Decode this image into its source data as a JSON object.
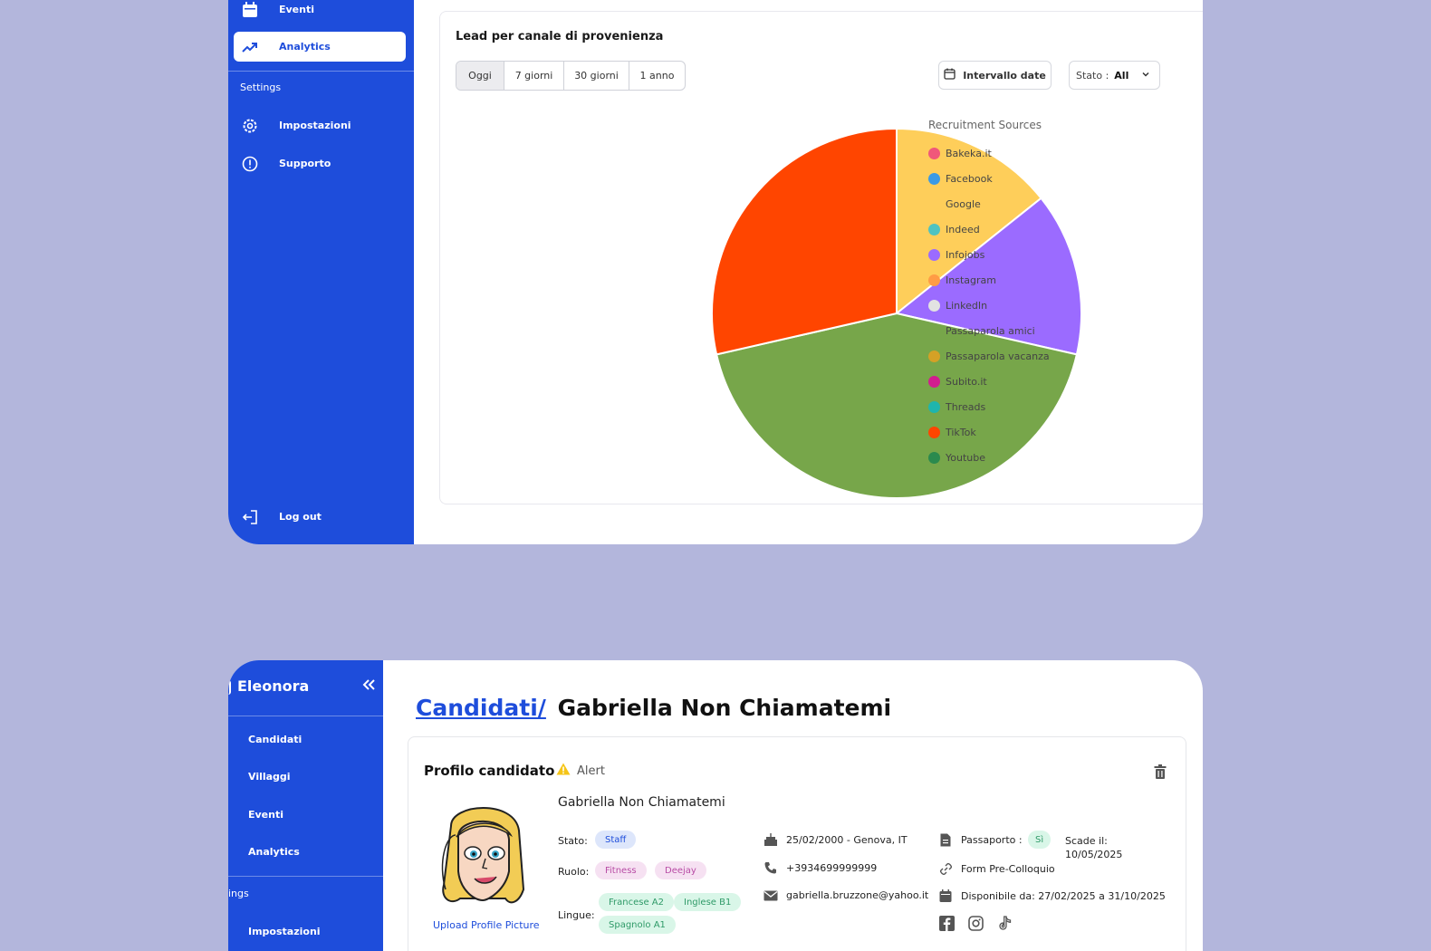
{
  "top_window": {
    "sidebar": {
      "items": [
        {
          "label": "Eventi",
          "icon": "calendar-icon"
        },
        {
          "label": "Analytics",
          "icon": "trending-up-icon",
          "active": true
        }
      ],
      "section_settings": "Settings",
      "settings_items": [
        {
          "label": "Impostazioni",
          "icon": "gear-icon"
        },
        {
          "label": "Supporto",
          "icon": "alert-circle-icon"
        }
      ],
      "logout": "Log out"
    },
    "card": {
      "title": "Lead per canale di provenienza",
      "range_tabs": [
        "Oggi",
        "7 giorni",
        "30 giorni",
        "1 anno"
      ],
      "selected_range": "Oggi",
      "date_button": "Intervallo date",
      "status_label": "Stato :",
      "status_value": "All"
    }
  },
  "chart_data": {
    "type": "pie",
    "legend_title": "Recruitment Sources",
    "legend": [
      {
        "name": "Bakeka.it",
        "color": "#f0587a"
      },
      {
        "name": "Facebook",
        "color": "#3b9ae6"
      },
      {
        "name": "Google",
        "color": "#fece5a"
      },
      {
        "name": "Indeed",
        "color": "#4fc3c1"
      },
      {
        "name": "Infojobs",
        "color": "#9b6bff"
      },
      {
        "name": "Instagram",
        "color": "#ff9c45"
      },
      {
        "name": "LinkedIn",
        "color": "#e2e2e2"
      },
      {
        "name": "Passaparola amici",
        "color": "#77a64a"
      },
      {
        "name": "Passaparola vacanza",
        "color": "#d4a126"
      },
      {
        "name": "Subito.it",
        "color": "#d21d8f"
      },
      {
        "name": "Threads",
        "color": "#1fb5ad"
      },
      {
        "name": "TikTok",
        "color": "#ff4500"
      },
      {
        "name": "Youtube",
        "color": "#2b8a4e"
      }
    ],
    "slices": [
      {
        "name": "Google",
        "value": 1,
        "color": "#fece5a"
      },
      {
        "name": "Infojobs",
        "value": 1,
        "color": "#9b6bff"
      },
      {
        "name": "Passaparola amici",
        "value": 3,
        "color": "#77a64a"
      },
      {
        "name": "TikTok",
        "value": 2,
        "color": "#ff4500"
      }
    ]
  },
  "bottom_window": {
    "sidebar": {
      "user": "Eleonora",
      "items": [
        "Candidati",
        "Villaggi",
        "Eventi",
        "Analytics"
      ],
      "section_settings": "ings",
      "settings_items": [
        "Impostazioni"
      ]
    },
    "breadcrumb": {
      "link": "Candidati/",
      "current": "Gabriella Non Chiamatemi"
    },
    "profile": {
      "title": "Profilo candidato",
      "alert": "Alert",
      "name": "Gabriella Non Chiamatemi",
      "upload_label": "Upload Profile Picture",
      "stato_label": "Stato:",
      "stato_value": "Staff",
      "ruolo_label": "Ruolo:",
      "ruoli": [
        "Fitness",
        "Deejay"
      ],
      "lingue_label": "Lingue:",
      "lingue": [
        "Francese A2",
        "Inglese B1",
        "Spagnolo A1"
      ],
      "birth": "25/02/2000 - Genova, IT",
      "phone": "+3934699999999",
      "email": "gabriella.bruzzone@yahoo.it",
      "passport_label": "Passaporto :",
      "passport_value": "Sì",
      "expiry_label": "Scade il:",
      "expiry_value": "10/05/2025",
      "form_link": "Form Pre-Colloquio",
      "availability": "Disponibile da: 27/02/2025 a 31/10/2025",
      "socials": [
        "facebook-icon",
        "instagram-icon",
        "tiktok-icon"
      ]
    }
  }
}
